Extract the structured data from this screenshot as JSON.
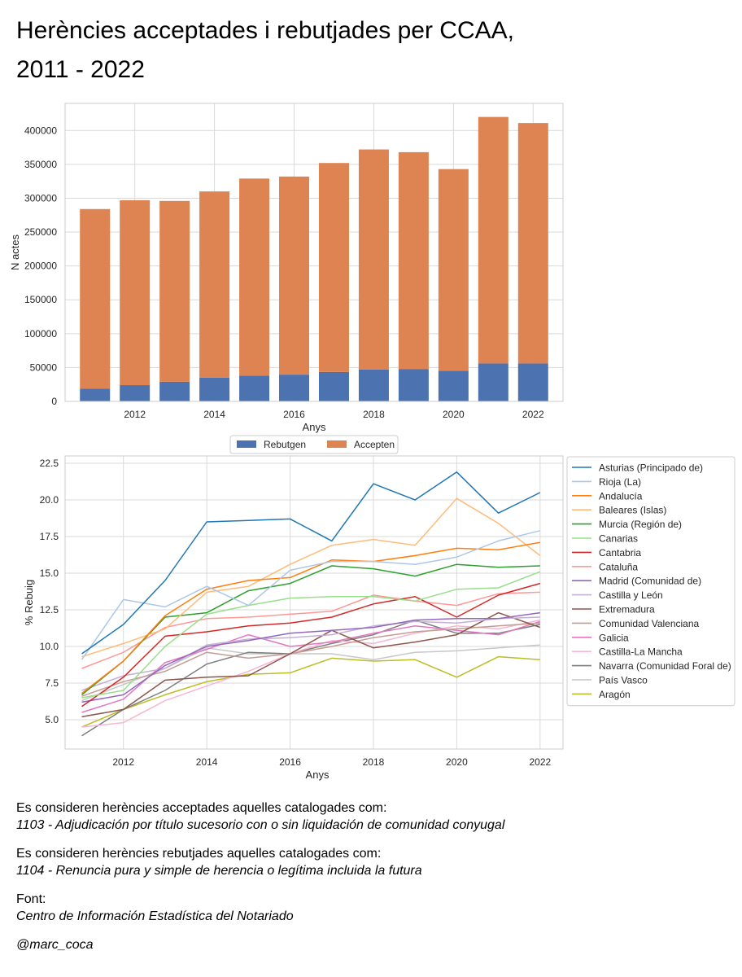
{
  "title_line1": "Herències acceptades i rebutjades per CCAA,",
  "title_line2": "2011 - 2022",
  "notes": {
    "accepted_intro": "Es consideren herències acceptades aquelles catalogades com:",
    "accepted_code": "1103 - Adjudicación por título sucesorio con o sin liquidación de comunidad conyugal",
    "rejected_intro": "Es consideren herències rebutjades aquelles catalogades com:",
    "rejected_code": "1104 - Renuncia pura y simple de herencia o legítima incluida la futura",
    "source_label": "Font:",
    "source_name": "Centro de Información Estadística del Notariado",
    "author": "@marc_coca"
  },
  "chart_data": [
    {
      "type": "bar",
      "stacked": true,
      "categories": [
        2011,
        2012,
        2013,
        2014,
        2015,
        2016,
        2017,
        2018,
        2019,
        2020,
        2021,
        2022
      ],
      "series": [
        {
          "name": "Rebutgen",
          "color": "#4c72b0",
          "values": [
            19000,
            24000,
            29000,
            35000,
            38000,
            39500,
            43500,
            47000,
            47500,
            45000,
            56000,
            56000
          ]
        },
        {
          "name": "Accepten",
          "color": "#dd8452",
          "values": [
            265000,
            273000,
            267000,
            275000,
            291000,
            292500,
            308500,
            325000,
            320500,
            298000,
            364000,
            355000
          ]
        }
      ],
      "xlabel": "Anys",
      "ylabel": "N actes",
      "ylim": [
        0,
        440000
      ],
      "yticks": [
        0,
        50000,
        100000,
        150000,
        200000,
        250000,
        300000,
        350000,
        400000
      ],
      "xticks": [
        2012,
        2014,
        2016,
        2018,
        2020,
        2022
      ],
      "grid": true,
      "legend_position": "bottom-center"
    },
    {
      "type": "line",
      "x": [
        2011,
        2012,
        2013,
        2014,
        2015,
        2016,
        2017,
        2018,
        2019,
        2020,
        2021,
        2022
      ],
      "xlabel": "Anys",
      "ylabel": "% Rebuig",
      "ylim": [
        3.0,
        23.0
      ],
      "yticks": [
        5.0,
        7.5,
        10.0,
        12.5,
        15.0,
        17.5,
        20.0,
        22.5
      ],
      "xticks": [
        2012,
        2014,
        2016,
        2018,
        2020,
        2022
      ],
      "grid": true,
      "legend_position": "right-outside",
      "series": [
        {
          "name": "Asturias (Principado de)",
          "color": "#1f77b4",
          "values": [
            9.5,
            11.5,
            14.5,
            18.5,
            18.6,
            18.7,
            17.2,
            21.1,
            20.0,
            21.9,
            19.1,
            20.5
          ]
        },
        {
          "name": "Rioja (La)",
          "color": "#aec7e8",
          "values": [
            9.1,
            13.2,
            12.7,
            14.1,
            12.8,
            15.2,
            15.8,
            15.8,
            15.6,
            16.1,
            17.2,
            17.9
          ]
        },
        {
          "name": "Andalucía",
          "color": "#ff7f0e",
          "values": [
            6.8,
            9.0,
            12.1,
            13.9,
            14.5,
            14.7,
            15.9,
            15.8,
            16.2,
            16.7,
            16.6,
            17.1
          ]
        },
        {
          "name": "Baleares (Islas)",
          "color": "#ffbb78",
          "values": [
            9.3,
            10.2,
            11.2,
            13.7,
            14.1,
            15.6,
            16.9,
            17.3,
            16.9,
            20.1,
            18.4,
            16.2
          ]
        },
        {
          "name": "Murcia (Región de)",
          "color": "#2ca02c",
          "values": [
            6.7,
            9.0,
            12.0,
            12.3,
            13.8,
            14.3,
            15.5,
            15.3,
            14.8,
            15.6,
            15.4,
            15.5
          ]
        },
        {
          "name": "Canarias",
          "color": "#98df8a",
          "values": [
            6.5,
            7.0,
            10.0,
            12.2,
            12.8,
            13.3,
            13.4,
            13.4,
            13.1,
            13.9,
            14.0,
            15.1
          ]
        },
        {
          "name": "Cantabria",
          "color": "#d62728",
          "values": [
            5.9,
            7.9,
            10.7,
            11.0,
            11.4,
            11.6,
            12.0,
            12.9,
            13.4,
            12.0,
            13.5,
            14.3
          ]
        },
        {
          "name": "Cataluña",
          "color": "#ff9896",
          "values": [
            8.5,
            9.6,
            11.3,
            11.9,
            12.0,
            12.2,
            12.4,
            13.5,
            13.1,
            12.8,
            13.6,
            13.7
          ]
        },
        {
          "name": "Madrid (Comunidad de)",
          "color": "#9467bd",
          "values": [
            6.2,
            6.7,
            8.7,
            10.0,
            10.4,
            10.9,
            11.1,
            11.3,
            11.8,
            11.9,
            11.9,
            12.3
          ]
        },
        {
          "name": "Castilla y León",
          "color": "#c5b0d5",
          "values": [
            7.0,
            8.0,
            8.5,
            10.1,
            10.5,
            10.6,
            10.8,
            11.4,
            11.7,
            11.6,
            11.9,
            12.0
          ]
        },
        {
          "name": "Extremadura",
          "color": "#8c564b",
          "values": [
            5.2,
            5.7,
            7.7,
            7.9,
            8.0,
            9.5,
            11.1,
            9.9,
            10.3,
            10.8,
            12.3,
            11.3
          ]
        },
        {
          "name": "Comunidad Valenciana",
          "color": "#c49c94",
          "values": [
            6.6,
            7.6,
            8.3,
            9.6,
            9.2,
            9.5,
            10.0,
            10.6,
            11.0,
            11.2,
            11.4,
            11.6
          ]
        },
        {
          "name": "Galicia",
          "color": "#e377c2",
          "values": [
            5.5,
            6.4,
            8.9,
            9.8,
            10.8,
            10.0,
            10.3,
            10.9,
            11.4,
            11.1,
            10.8,
            11.7
          ]
        },
        {
          "name": "Castilla-La Mancha",
          "color": "#f7b6d2",
          "values": [
            4.5,
            4.8,
            6.3,
            7.3,
            8.3,
            9.5,
            10.4,
            10.2,
            10.9,
            11.4,
            11.2,
            11.8
          ]
        },
        {
          "name": "Navarra (Comunidad Foral de)",
          "color": "#7f7f7f",
          "values": [
            3.9,
            5.7,
            7.0,
            8.8,
            9.6,
            9.5,
            10.2,
            10.8,
            11.8,
            10.9,
            10.9,
            11.5
          ]
        },
        {
          "name": "País Vasco",
          "color": "#c7c7c7",
          "values": [
            6.3,
            7.4,
            8.5,
            9.9,
            9.5,
            9.5,
            9.5,
            9.1,
            9.6,
            9.7,
            9.9,
            10.1
          ]
        },
        {
          "name": "Aragón",
          "color": "#bcbd22",
          "values": [
            4.5,
            5.7,
            6.7,
            7.6,
            8.1,
            8.2,
            9.2,
            9.0,
            9.1,
            7.9,
            9.3,
            9.1
          ]
        }
      ]
    }
  ]
}
